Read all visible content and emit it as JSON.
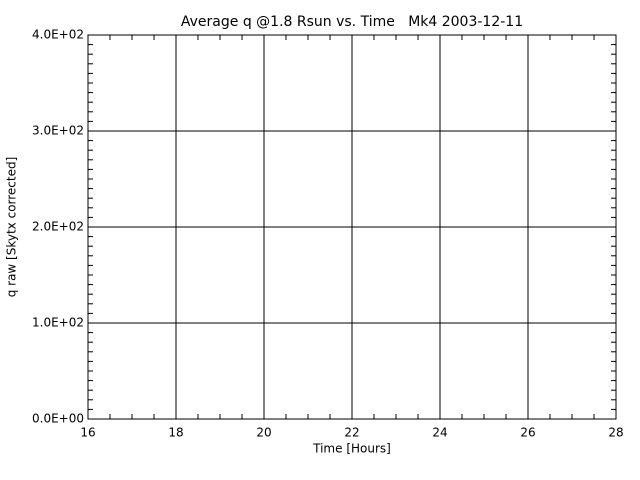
{
  "chart_data": {
    "type": "line",
    "title": "Average q @1.8 Rsun vs. Time   Mk4 2003-12-11",
    "x_label": "Time [Hours]",
    "y_label": "q raw [Skytx corrected]",
    "series": [],
    "xlim": [
      16,
      28
    ],
    "xticks": [
      16,
      18,
      20,
      22,
      24,
      26,
      28
    ],
    "ylim": [
      0,
      400
    ],
    "yticks": [
      {
        "value": 0,
        "label": "0.0E+00"
      },
      {
        "value": 100,
        "label": "1.0E+02"
      },
      {
        "value": 200,
        "label": "2.0E+02"
      },
      {
        "value": 300,
        "label": "3.0E+02"
      },
      {
        "value": 400,
        "label": "4.0E+02"
      }
    ],
    "grid": true
  }
}
